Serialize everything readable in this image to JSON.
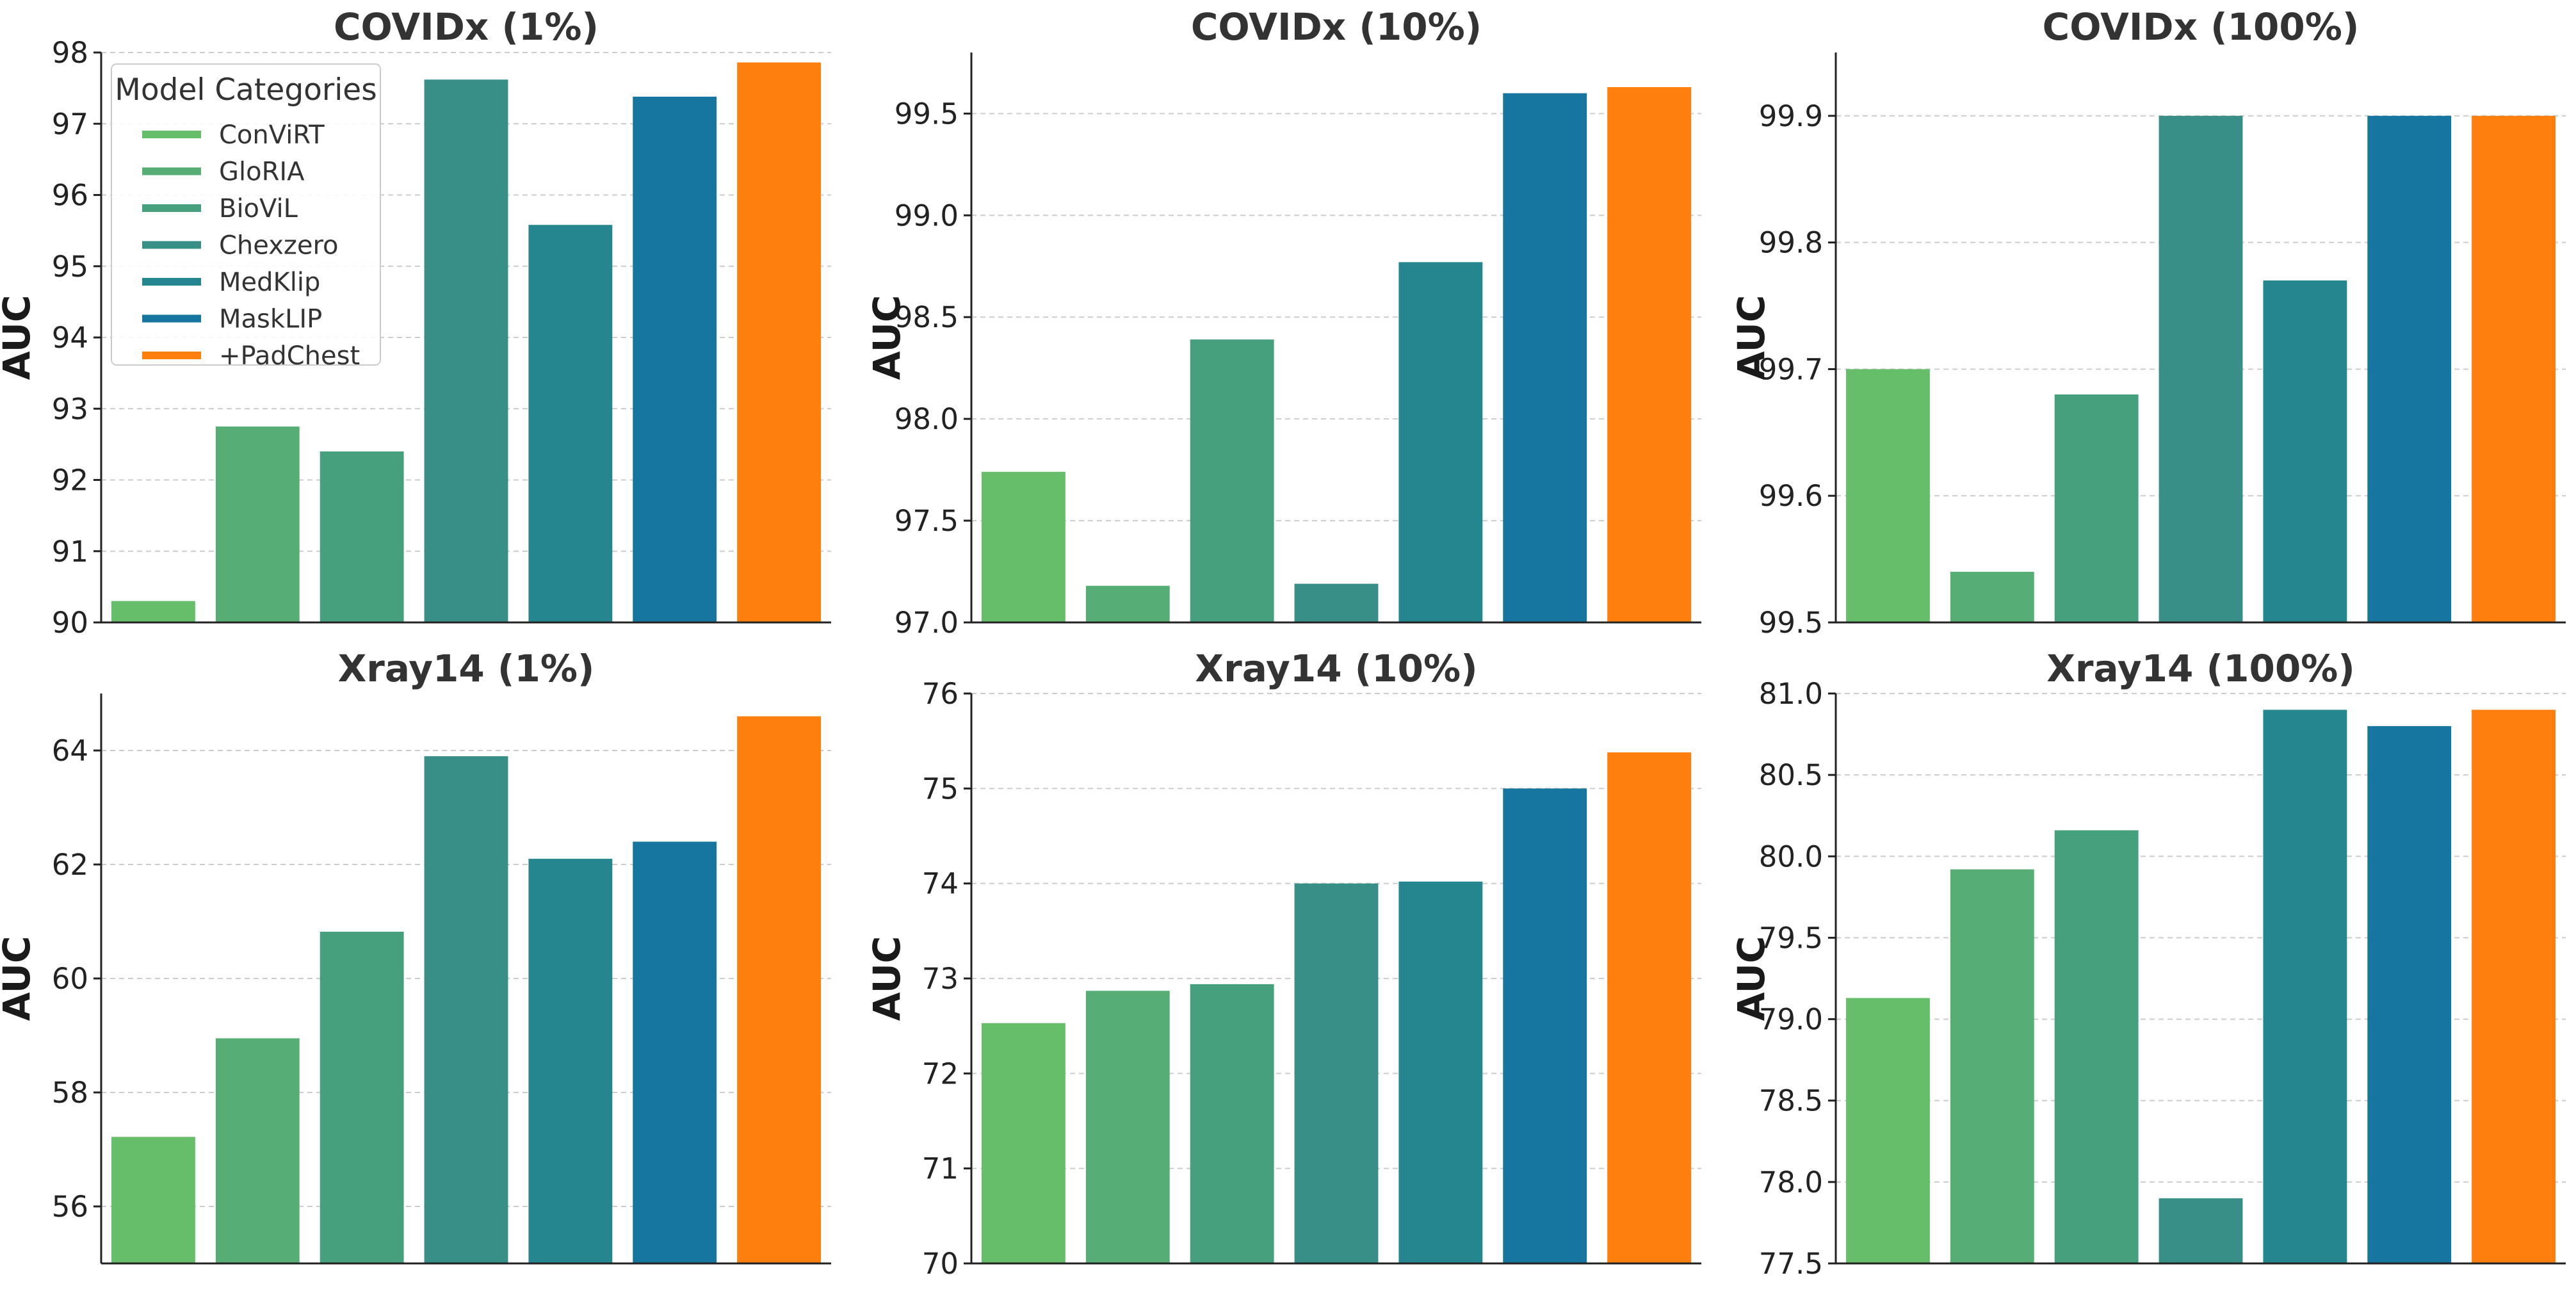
{
  "chart_data": [
    {
      "type": "bar",
      "title": "COVIDx (1%)",
      "xlabel": "",
      "ylabel": "AUC",
      "ylim": [
        90,
        98
      ],
      "yticks": [
        "90",
        "91",
        "92",
        "93",
        "94",
        "95",
        "96",
        "97",
        "98"
      ],
      "categories": [
        "ConViRT",
        "GloRIA",
        "BioViL",
        "Chexzero",
        "MedKlip",
        "MaskLIP",
        "+PadChest"
      ],
      "values": [
        90.3,
        92.75,
        92.4,
        97.62,
        95.58,
        97.38,
        97.86
      ],
      "grid": "y",
      "legend": {
        "title": "Model Categories",
        "position": "top-left",
        "entries": [
          "ConViRT",
          "GloRIA",
          "BioViL",
          "Chexzero",
          "MedKlip",
          "MaskLIP",
          "+PadChest"
        ]
      }
    },
    {
      "type": "bar",
      "title": "COVIDx (10%)",
      "xlabel": "",
      "ylabel": "AUC",
      "ylim": [
        97.0,
        99.8
      ],
      "yticks": [
        "97.0",
        "97.5",
        "98.0",
        "98.5",
        "99.0",
        "99.5"
      ],
      "categories": [
        "ConViRT",
        "GloRIA",
        "BioViL",
        "Chexzero",
        "MedKlip",
        "MaskLIP",
        "+PadChest"
      ],
      "values": [
        97.74,
        97.18,
        98.39,
        97.19,
        98.77,
        99.6,
        99.63
      ],
      "grid": "y"
    },
    {
      "type": "bar",
      "title": "COVIDx (100%)",
      "xlabel": "",
      "ylabel": "AUC",
      "ylim": [
        99.5,
        99.95
      ],
      "yticks": [
        "99.5",
        "99.6",
        "99.7",
        "99.8",
        "99.9"
      ],
      "categories": [
        "ConViRT",
        "GloRIA",
        "BioViL",
        "Chexzero",
        "MedKlip",
        "MaskLIP",
        "+PadChest"
      ],
      "values": [
        99.7,
        99.54,
        99.68,
        99.9,
        99.77,
        99.9,
        99.9
      ],
      "grid": "y"
    },
    {
      "type": "bar",
      "title": "Xray14 (1%)",
      "xlabel": "",
      "ylabel": "AUC",
      "ylim": [
        55,
        65
      ],
      "yticks": [
        "56",
        "58",
        "60",
        "62",
        "64"
      ],
      "categories": [
        "ConViRT",
        "GloRIA",
        "BioViL",
        "Chexzero",
        "MedKlip",
        "MaskLIP",
        "+PadChest"
      ],
      "values": [
        57.22,
        58.95,
        60.82,
        63.9,
        62.1,
        62.4,
        64.6
      ],
      "grid": "y"
    },
    {
      "type": "bar",
      "title": "Xray14 (10%)",
      "xlabel": "",
      "ylabel": "AUC",
      "ylim": [
        70,
        76
      ],
      "yticks": [
        "70",
        "71",
        "72",
        "73",
        "74",
        "75",
        "76"
      ],
      "categories": [
        "ConViRT",
        "GloRIA",
        "BioViL",
        "Chexzero",
        "MedKlip",
        "MaskLIP",
        "+PadChest"
      ],
      "values": [
        72.53,
        72.87,
        72.94,
        74.0,
        74.02,
        75.0,
        75.38
      ],
      "grid": "y"
    },
    {
      "type": "bar",
      "title": "Xray14 (100%)",
      "xlabel": "",
      "ylabel": "AUC",
      "ylim": [
        77.5,
        81.0
      ],
      "yticks": [
        "77.5",
        "78.0",
        "78.5",
        "79.0",
        "79.5",
        "80.0",
        "80.5",
        "81.0"
      ],
      "categories": [
        "ConViRT",
        "GloRIA",
        "BioViL",
        "Chexzero",
        "MedKlip",
        "MaskLIP",
        "+PadChest"
      ],
      "values": [
        79.13,
        79.92,
        80.16,
        77.9,
        80.9,
        80.8,
        80.9
      ],
      "grid": "y"
    }
  ],
  "colors": [
    "#66bd6a",
    "#56ae74",
    "#46a07d",
    "#378f87",
    "#268690",
    "#17769f",
    "#ff7f0e"
  ]
}
